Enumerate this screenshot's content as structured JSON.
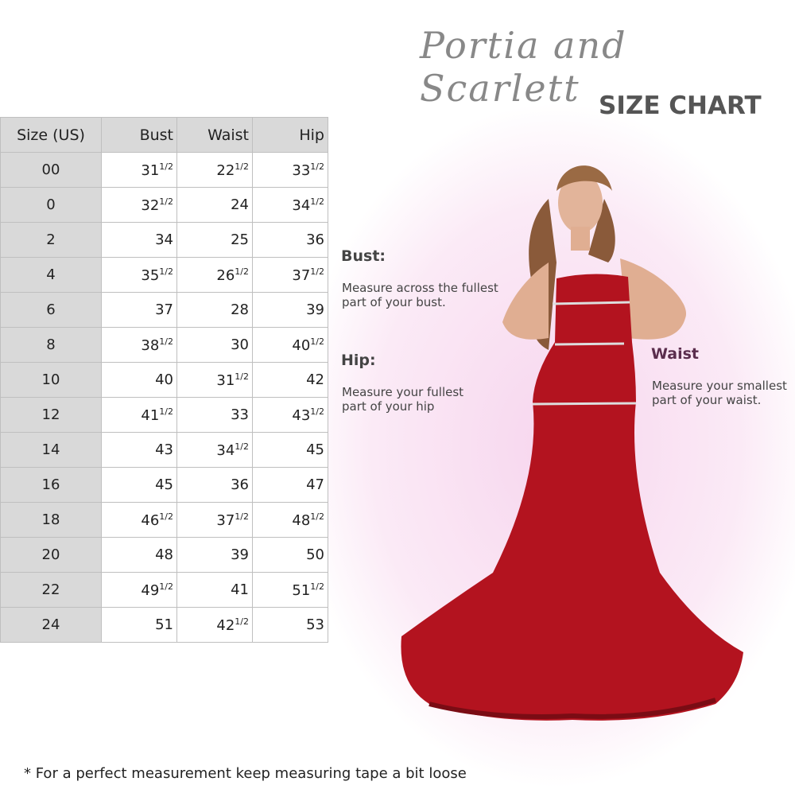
{
  "brand": "Portia and Scarlett",
  "title": "SIZE CHART",
  "table": {
    "header": [
      "Size (US)",
      "Bust",
      "Waist",
      "Hip"
    ],
    "rows": [
      [
        "00",
        {
          "base": "31",
          "sup": "1/2"
        },
        {
          "base": "22",
          "sup": "1/2"
        },
        {
          "base": "33",
          "sup": "1/2"
        }
      ],
      [
        "0",
        {
          "base": "32",
          "sup": "1/2"
        },
        "24",
        {
          "base": "34",
          "sup": "1/2"
        }
      ],
      [
        "2",
        "34",
        "25",
        "36"
      ],
      [
        "4",
        {
          "base": "35",
          "sup": "1/2"
        },
        {
          "base": "26",
          "sup": "1/2"
        },
        {
          "base": "37",
          "sup": "1/2"
        }
      ],
      [
        "6",
        "37",
        "28",
        "39"
      ],
      [
        "8",
        {
          "base": "38",
          "sup": "1/2"
        },
        "30",
        {
          "base": "40",
          "sup": "1/2"
        }
      ],
      [
        "10",
        "40",
        {
          "base": "31",
          "sup": "1/2"
        },
        "42"
      ],
      [
        "12",
        {
          "base": "41",
          "sup": "1/2"
        },
        "33",
        {
          "base": "43",
          "sup": "1/2"
        }
      ],
      [
        "14",
        "43",
        {
          "base": "34",
          "sup": "1/2"
        },
        "45"
      ],
      [
        "16",
        "45",
        "36",
        "47"
      ],
      [
        "18",
        {
          "base": "46",
          "sup": "1/2"
        },
        {
          "base": "37",
          "sup": "1/2"
        },
        {
          "base": "48",
          "sup": "1/2"
        }
      ],
      [
        "20",
        "48",
        "39",
        "50"
      ],
      [
        "22",
        {
          "base": "49",
          "sup": "1/2"
        },
        "41",
        {
          "base": "51",
          "sup": "1/2"
        }
      ],
      [
        "24",
        "51",
        {
          "base": "42",
          "sup": "1/2"
        },
        "53"
      ]
    ]
  },
  "measures": {
    "bust": {
      "label": "Bust:",
      "lines": [
        "Measure across the fullest",
        "part of your bust."
      ]
    },
    "hip": {
      "label": "Hip:",
      "lines": [
        "Measure your fullest",
        "part of your hip"
      ]
    },
    "waist": {
      "label": "Waist",
      "lines": [
        "Measure your smallest",
        "part of your waist."
      ]
    }
  },
  "footnote": "* For a perfect measurement keep measuring tape a bit loose"
}
